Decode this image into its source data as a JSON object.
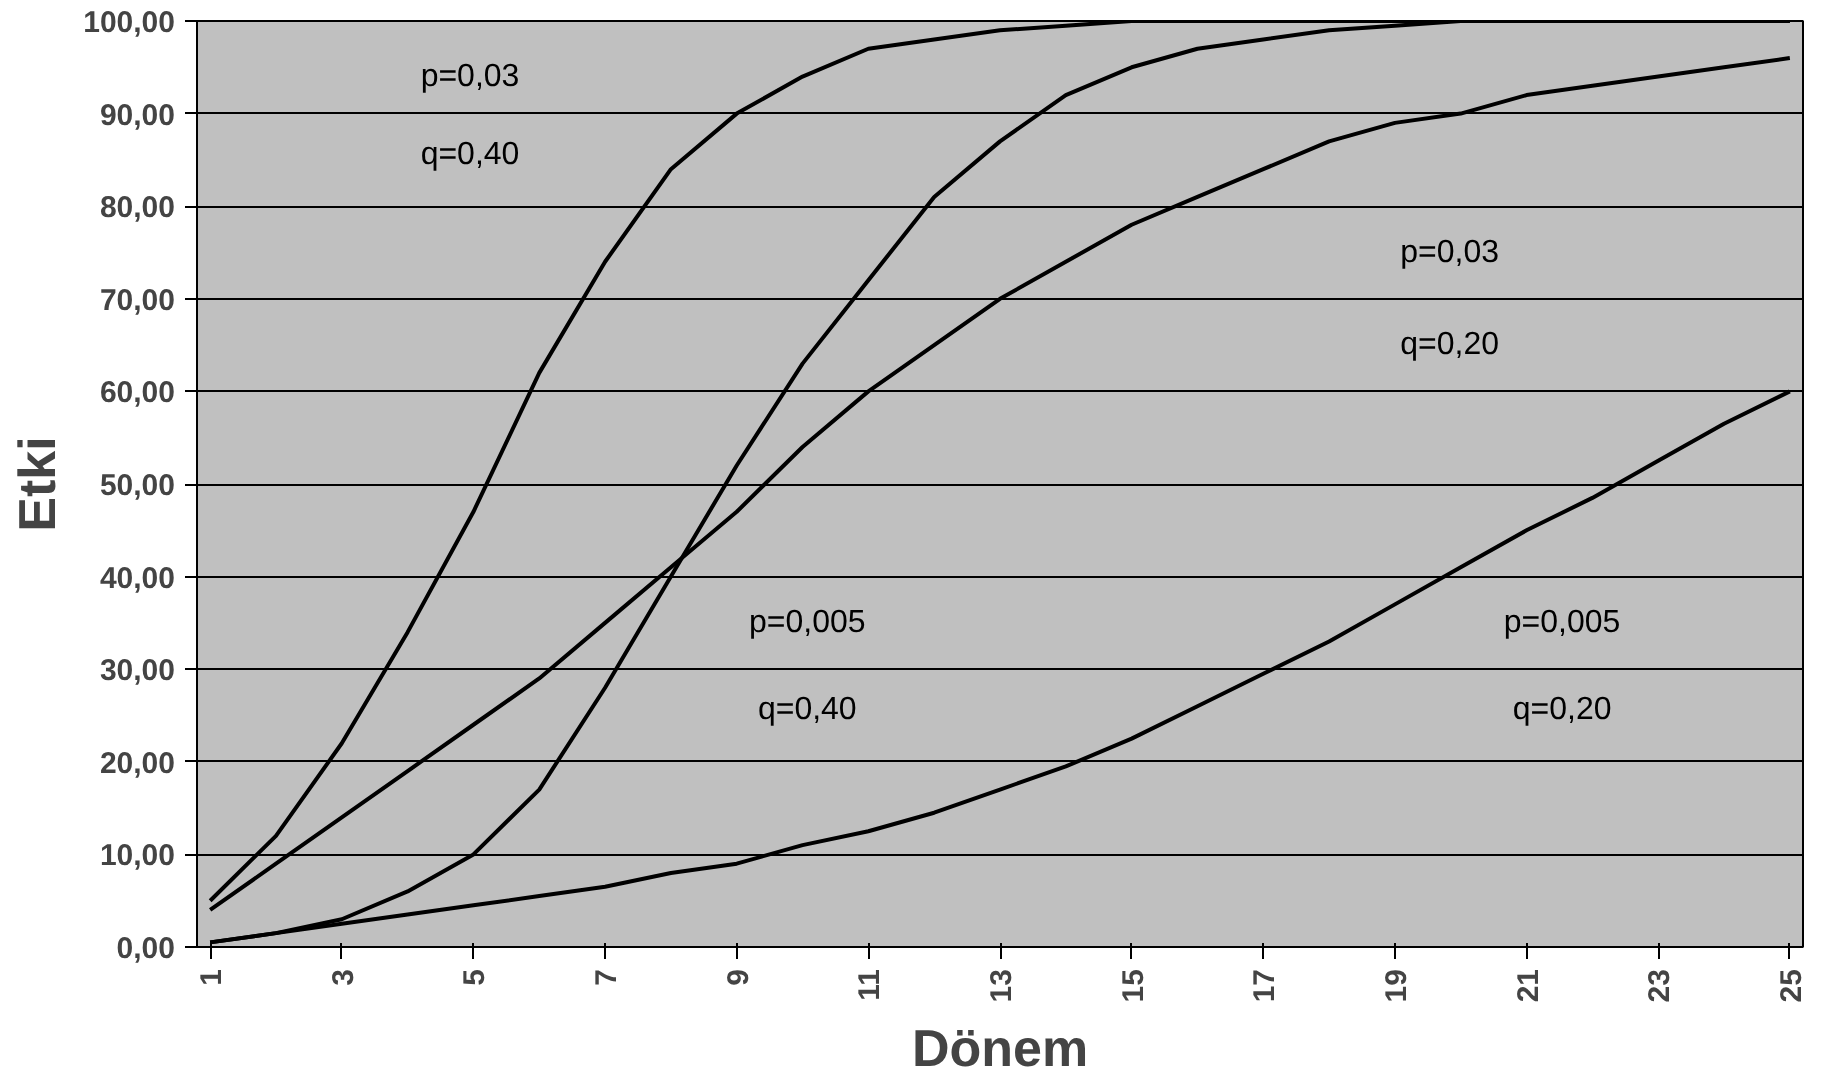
{
  "chart_data": {
    "type": "line",
    "xlabel": "Dönem",
    "ylabel": "Etki",
    "x": [
      1,
      2,
      3,
      4,
      5,
      6,
      7,
      8,
      9,
      10,
      11,
      12,
      13,
      14,
      15,
      16,
      17,
      18,
      19,
      20,
      21,
      22,
      23,
      24,
      25
    ],
    "series": [
      {
        "color": "#000000",
        "values": [
          5,
          12,
          22,
          34,
          47,
          62,
          74,
          84,
          90,
          94,
          97,
          98,
          99,
          99.5,
          100,
          100,
          100,
          100,
          100,
          100,
          100,
          100,
          100,
          100,
          100
        ]
      },
      {
        "color": "#000000",
        "values": [
          0.5,
          1.5,
          3,
          6,
          10,
          17,
          28,
          40,
          52,
          63,
          72,
          81,
          87,
          92,
          95,
          97,
          98,
          99,
          99.5,
          100,
          100,
          100,
          100,
          100,
          100
        ]
      },
      {
        "color": "#000000",
        "values": [
          4,
          9,
          14,
          19,
          24,
          29,
          35,
          41,
          47,
          54,
          60,
          65,
          70,
          74,
          78,
          81,
          84,
          87,
          89,
          90,
          92,
          93,
          94,
          95,
          96
        ]
      },
      {
        "color": "#000000",
        "values": [
          0.5,
          1.5,
          2.5,
          3.5,
          4.5,
          5.5,
          6.5,
          8,
          9,
          11,
          12.5,
          14.5,
          17,
          19.5,
          22.5,
          26,
          29.5,
          33,
          37,
          41,
          45,
          48.5,
          52.5,
          56.5,
          60
        ]
      }
    ],
    "xlim": [
      0.8,
      25.2
    ],
    "xticks": [
      1,
      3,
      5,
      7,
      9,
      11,
      13,
      15,
      17,
      19,
      21,
      23,
      25
    ],
    "ylim": [
      0,
      100
    ],
    "yticks": [
      {
        "value": 0,
        "label": "0,00"
      },
      {
        "value": 10,
        "label": "10,00"
      },
      {
        "value": 20,
        "label": "20,00"
      },
      {
        "value": 30,
        "label": "30,00"
      },
      {
        "value": 40,
        "label": "40,00"
      },
      {
        "value": 50,
        "label": "50,00"
      },
      {
        "value": 60,
        "label": "60,00"
      },
      {
        "value": 70,
        "label": "70,00"
      },
      {
        "value": 80,
        "label": "80,00"
      },
      {
        "value": 90,
        "label": "90,00"
      },
      {
        "value": 100,
        "label": "100,00"
      }
    ],
    "grid": "y",
    "marker": "none",
    "line_style": "solid",
    "annotations": [
      "p=0,03",
      "q=0,40",
      "p=0,03",
      "q=0,20",
      "p=0,005",
      "q=0,40",
      "p=0,005",
      "q=0,20"
    ]
  }
}
